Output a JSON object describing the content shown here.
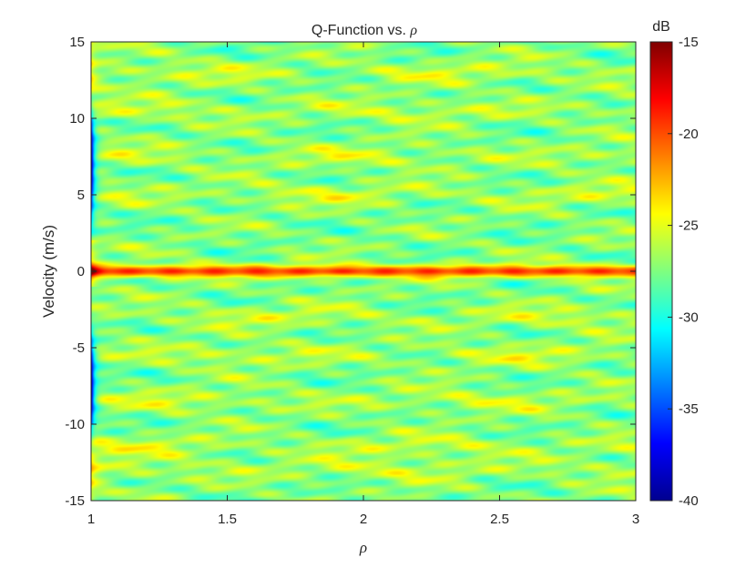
{
  "chart_data": {
    "type": "heatmap",
    "title_prefix": "Q-Function vs. ",
    "title_symbol": "ρ",
    "xlabel": "ρ",
    "ylabel": "Velocity (m/s)",
    "xlim": [
      1,
      3
    ],
    "ylim": [
      -15,
      15
    ],
    "xticks": [
      "1",
      "1.5",
      "2",
      "2.5",
      "3"
    ],
    "yticks": [
      "-15",
      "-10",
      "-5",
      "0",
      "5",
      "10",
      "15"
    ],
    "colorbar": {
      "label": "dB",
      "clim": [
        -40,
        -15
      ],
      "ticks": [
        "-15",
        "-20",
        "-25",
        "-30",
        "-35",
        "-40"
      ],
      "colormap": "jet"
    },
    "field": {
      "background_db": -27.5,
      "peak_ridge": {
        "velocity": 0,
        "db_near_rho1": -15,
        "db_along_rho": -19.5
      },
      "minimum_edge": {
        "rho": 1,
        "db": -39,
        "velocity_bands": [
          [
            2,
            12
          ],
          [
            -3,
            -12
          ]
        ]
      },
      "secondary_ridges_db": -25
    }
  }
}
